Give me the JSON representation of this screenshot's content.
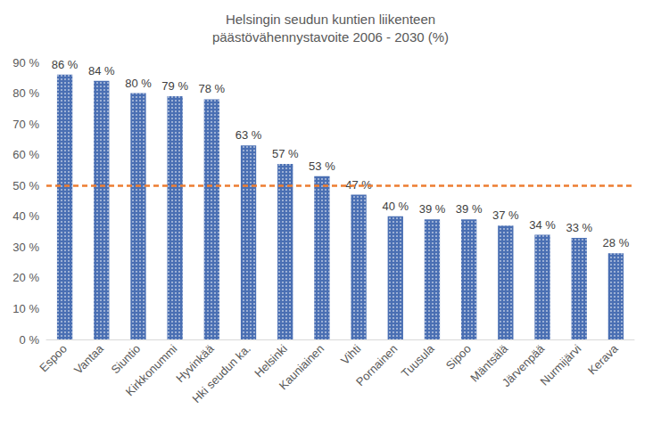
{
  "chart_data": {
    "type": "bar",
    "title": "Helsingin seudun kuntien liikenteen\npäästövähennystavoite 2006 - 2030 (%)",
    "categories": [
      "Espoo",
      "Vantaa",
      "Siuntio",
      "Kirkkonummi",
      "Hyvinkää",
      "Hki seudun ka.",
      "Helsinki",
      "Kauniainen",
      "Vihti",
      "Pornainen",
      "Tuusula",
      "Sipoo",
      "Mäntsälä",
      "Järvenpää",
      "Nurmijärvi",
      "Kerava"
    ],
    "values": [
      86,
      84,
      80,
      79,
      78,
      63,
      57,
      53,
      47,
      40,
      39,
      39,
      37,
      34,
      33,
      28
    ],
    "value_labels": [
      "86 %",
      "84 %",
      "80 %",
      "79 %",
      "78 %",
      "63 %",
      "57 %",
      "53 %",
      "47 %",
      "40 %",
      "39 %",
      "39 %",
      "37 %",
      "34 %",
      "33 %",
      "28 %"
    ],
    "color": "#4a6fb3",
    "reference_line": 50,
    "ylim": [
      0,
      90
    ],
    "yticks": [
      {
        "value": 0,
        "label": "0 %"
      },
      {
        "value": 10,
        "label": "10 %"
      },
      {
        "value": 20,
        "label": "20 %"
      },
      {
        "value": 30,
        "label": "30 %"
      },
      {
        "value": 40,
        "label": "40 %"
      },
      {
        "value": 50,
        "label": "50 %"
      },
      {
        "value": 60,
        "label": "60 %"
      },
      {
        "value": 70,
        "label": "70 %"
      },
      {
        "value": 80,
        "label": "80 %"
      },
      {
        "value": 90,
        "label": "90 %"
      }
    ],
    "data_labels": true,
    "grid": false
  }
}
